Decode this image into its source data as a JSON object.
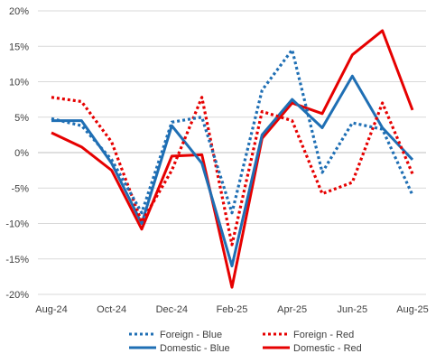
{
  "chart_data": {
    "type": "line",
    "title": "",
    "xlabel": "",
    "ylabel": "",
    "categories": [
      "Aug-24",
      "Sep-24",
      "Oct-24",
      "Nov-24",
      "Dec-24",
      "Jan-25",
      "Feb-25",
      "Mar-25",
      "Apr-25",
      "May-25",
      "Jun-25",
      "Jul-25",
      "Aug-25"
    ],
    "x_tick_labels": [
      "Aug-24",
      "Oct-24",
      "Dec-24",
      "Feb-25",
      "Apr-25",
      "Jun-25",
      "Aug-25"
    ],
    "y_tick_labels": [
      "20%",
      "15%",
      "10%",
      "5%",
      "0%",
      "-5%",
      "-10%",
      "-15%",
      "-20%"
    ],
    "ylim": [
      -20,
      20
    ],
    "y_step": 5,
    "grid": "horizontal",
    "legend_position": "bottom",
    "series": [
      {
        "name": "Foreign - Blue",
        "color": "#1F6FB4",
        "style": "dotted",
        "values": [
          4.8,
          3.8,
          -1.0,
          -8.5,
          4.3,
          5.0,
          -8.5,
          8.8,
          14.5,
          -2.8,
          4.2,
          3.3,
          -6.0
        ]
      },
      {
        "name": "Foreign - Red",
        "color": "#E60000",
        "style": "dotted",
        "values": [
          7.8,
          7.2,
          1.5,
          -9.8,
          -2.5,
          7.8,
          -13.0,
          5.8,
          4.5,
          -5.8,
          -4.2,
          7.0,
          -3.0
        ]
      },
      {
        "name": "Domestic - Blue",
        "color": "#1F6FB4",
        "style": "solid",
        "values": [
          4.5,
          4.5,
          -1.5,
          -10.0,
          3.8,
          -1.5,
          -16.0,
          2.5,
          7.5,
          3.5,
          10.8,
          3.5,
          -1.0
        ]
      },
      {
        "name": "Domestic - Red",
        "color": "#E60000",
        "style": "solid",
        "values": [
          2.8,
          0.8,
          -2.5,
          -10.8,
          -0.5,
          -0.3,
          -19.0,
          2.0,
          7.0,
          5.5,
          13.8,
          17.2,
          6.0
        ]
      }
    ]
  }
}
